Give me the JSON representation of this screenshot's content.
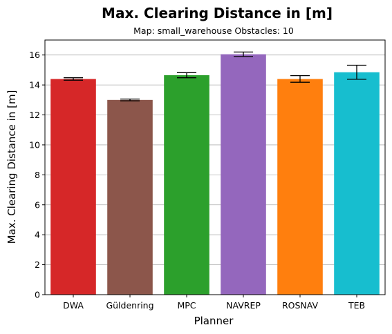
{
  "chart_data": {
    "type": "bar",
    "title": "Max. Clearing Distance in [m]",
    "subtitle": "Map: small_warehouse Obstacles: 10",
    "xlabel": "Planner",
    "ylabel": "Max. Clearing Distance in [m]",
    "categories": [
      "DWA",
      "Güldenring",
      "MPC",
      "NAVREP",
      "ROSNAV",
      "TEB"
    ],
    "values": [
      14.4,
      13.0,
      14.65,
      16.05,
      14.4,
      14.85
    ],
    "errors": [
      0.08,
      0.06,
      0.17,
      0.15,
      0.22,
      0.47
    ],
    "colors": [
      "#d62728",
      "#8c564b",
      "#2ca02c",
      "#9467bd",
      "#ff7f0e",
      "#17becf"
    ],
    "ylim": [
      0,
      17
    ],
    "yticks": [
      "0",
      "2",
      "4",
      "6",
      "8",
      "10",
      "12",
      "14",
      "16"
    ],
    "grid": "y"
  }
}
